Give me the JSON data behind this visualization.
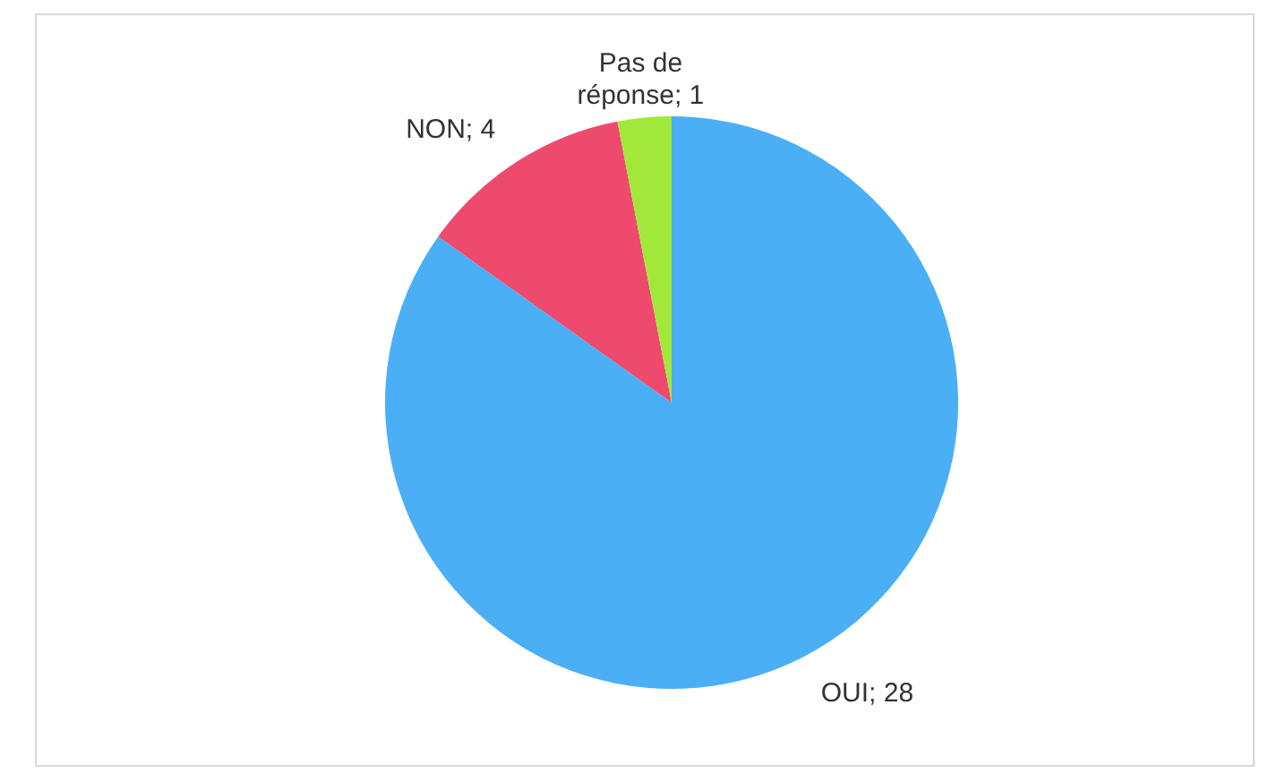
{
  "chart_data": {
    "type": "pie",
    "categories": [
      "OUI",
      "NON",
      "Pas de réponse"
    ],
    "values": [
      28,
      4,
      1
    ],
    "value_labels": [
      "; 28",
      "; 4",
      "; 1"
    ],
    "colors": [
      "#4baff5",
      "#ee4a6e",
      "#a2e83a"
    ]
  }
}
